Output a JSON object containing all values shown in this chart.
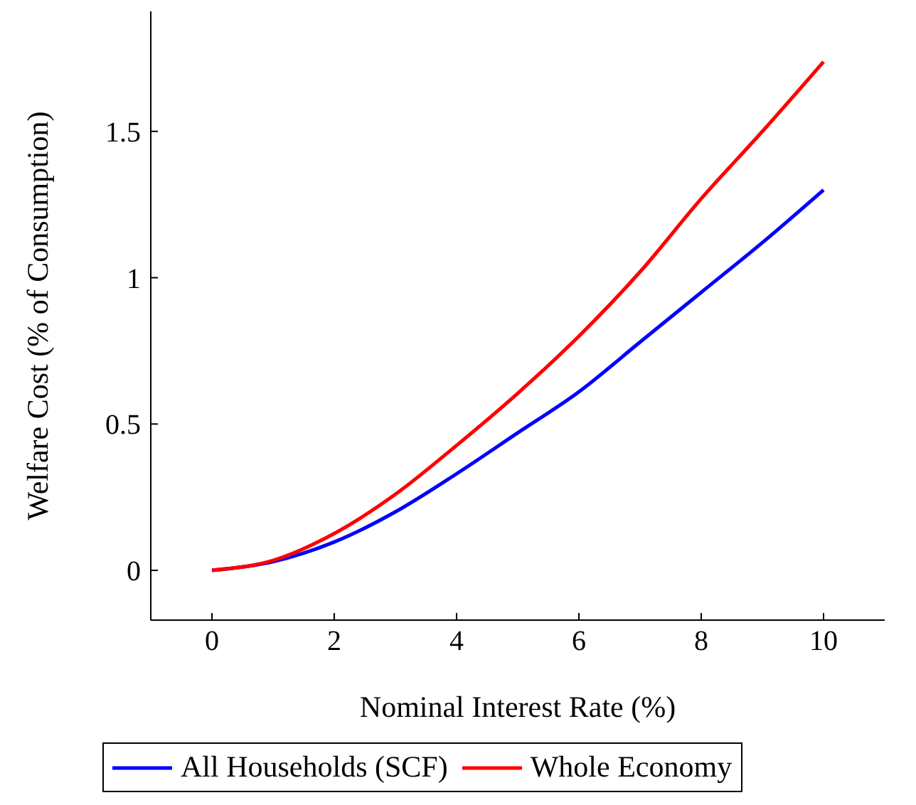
{
  "chart_data": {
    "type": "line",
    "xlabel": "Nominal Interest Rate (%)",
    "ylabel": "Welfare Cost (% of Consumption)",
    "x": [
      0,
      1,
      2,
      3,
      4,
      5,
      6,
      7,
      8,
      9,
      10
    ],
    "series": [
      {
        "name": "All Households (SCF)",
        "color": "#0000ff",
        "values": [
          0,
          0.03,
          0.097,
          0.2,
          0.33,
          0.47,
          0.61,
          0.78,
          0.95,
          1.12,
          1.3
        ]
      },
      {
        "name": "Whole Economy",
        "color": "#ff0000",
        "values": [
          0,
          0.034,
          0.126,
          0.26,
          0.427,
          0.605,
          0.8,
          1.02,
          1.27,
          1.5,
          1.738
        ]
      }
    ],
    "xlim": [
      -1,
      11
    ],
    "ylim": [
      -0.17,
      1.91
    ],
    "xticks": [
      0,
      2,
      4,
      6,
      8,
      10
    ],
    "yticks": [
      0,
      0.5,
      1,
      1.5
    ],
    "legend": "bottom",
    "grid": false
  }
}
